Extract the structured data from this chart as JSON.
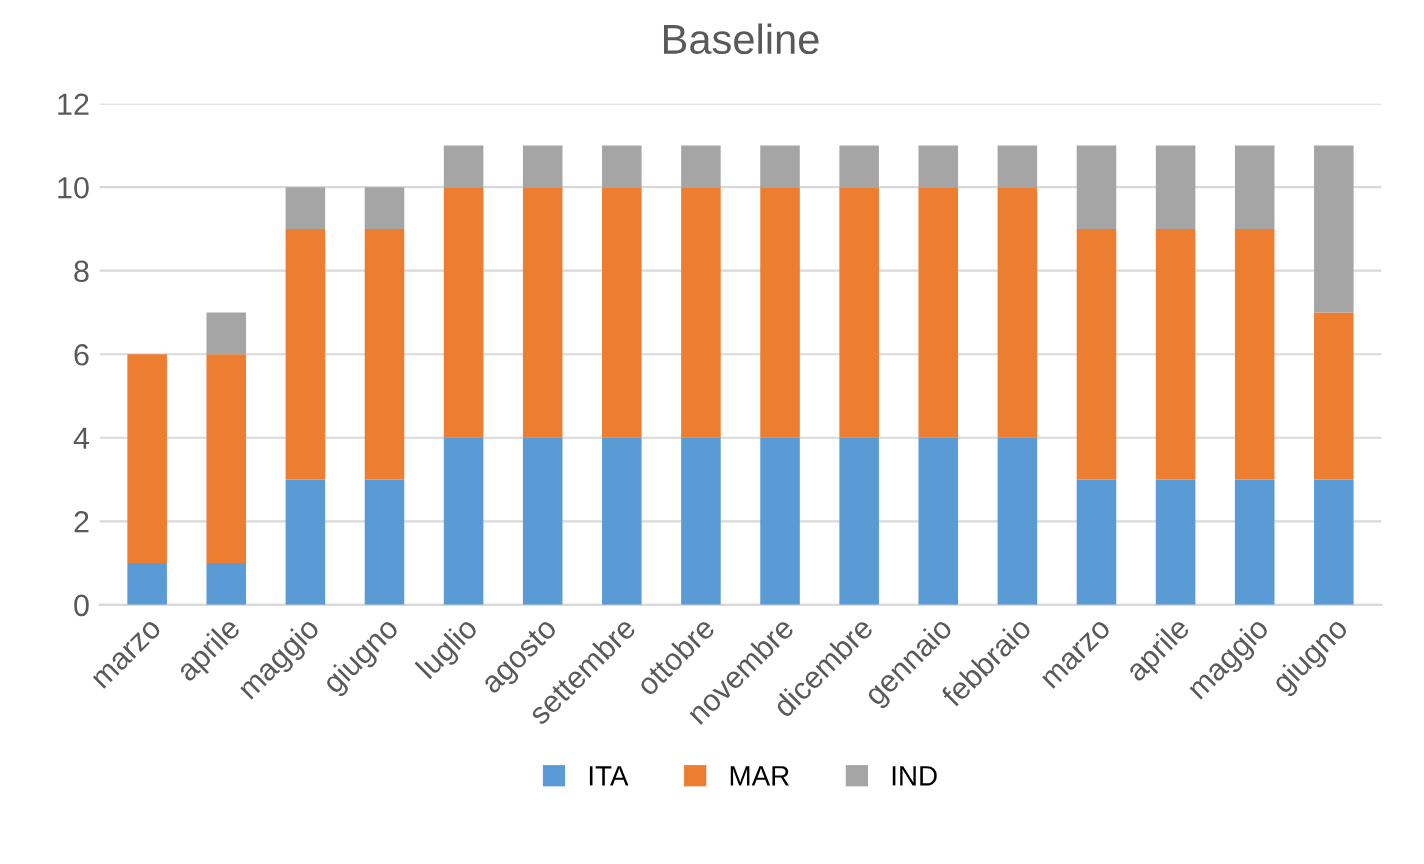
{
  "chart_data": {
    "type": "bar",
    "title": "Baseline",
    "stacked": true,
    "categories": [
      "marzo",
      "aprile",
      "maggio",
      "giugno",
      "luglio",
      "agosto",
      "settembre",
      "ottobre",
      "novembre",
      "dicembre",
      "gennaio",
      "febbraio",
      "marzo",
      "aprile",
      "maggio",
      "giugno"
    ],
    "series": [
      {
        "name": "ITA",
        "color": "#5b9bd5",
        "values": [
          1,
          1,
          3,
          3,
          4,
          4,
          4,
          4,
          4,
          4,
          4,
          4,
          3,
          3,
          3,
          3
        ]
      },
      {
        "name": "MAR",
        "color": "#ed7d31",
        "values": [
          5,
          5,
          6,
          6,
          6,
          6,
          6,
          6,
          6,
          6,
          6,
          6,
          6,
          6,
          6,
          4
        ]
      },
      {
        "name": "IND",
        "color": "#a5a5a5",
        "values": [
          0,
          1,
          1,
          1,
          1,
          1,
          1,
          1,
          1,
          1,
          1,
          1,
          2,
          2,
          2,
          4
        ]
      }
    ],
    "ylim": [
      0,
      12
    ],
    "yticks": [
      0,
      2,
      4,
      6,
      8,
      10,
      12
    ],
    "grid": "y",
    "legend": "bottom"
  }
}
